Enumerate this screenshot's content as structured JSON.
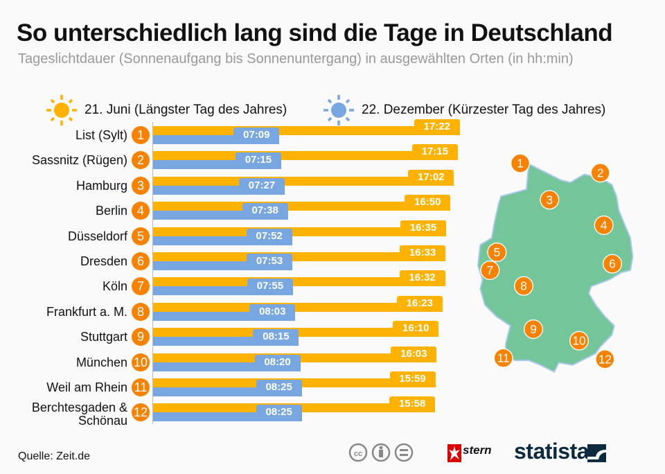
{
  "title": "So unterschiedlich lang sind die Tage in Deutschland",
  "subtitle": "Tageslichtdauer (Sonnenaufgang bis Sonnenuntergang) in ausgewählten Orten (in hh:min)",
  "source": "Quelle: Zeit.de",
  "logos": [
    "stern",
    "statista"
  ],
  "icons": [
    "sun-icon",
    "cc-icon",
    "by-icon",
    "nd-icon"
  ],
  "colors": {
    "june": "#ffb300",
    "december": "#77a6e0",
    "number": "#f68200",
    "map": "#74c69a"
  },
  "chart_data": {
    "type": "bar",
    "orientation": "horizontal",
    "unit": "hh:min",
    "series": [
      {
        "name": "21. Juni (Längster Tag des Jahres)",
        "values": [
          "17:22",
          "17:15",
          "17:02",
          "16:50",
          "16:35",
          "16:33",
          "16:32",
          "16:23",
          "16:10",
          "16:03",
          "15:59",
          "15:58"
        ]
      },
      {
        "name": "22. Dezember (Kürzester Tag des Jahres)",
        "values": [
          "07:09",
          "07:15",
          "07:27",
          "07:38",
          "07:52",
          "07:53",
          "07:55",
          "08:03",
          "08:15",
          "08:20",
          "08:25",
          "08:25"
        ]
      }
    ],
    "categories": [
      "List (Sylt)",
      "Sassnitz (Rügen)",
      "Hamburg",
      "Berlin",
      "Düsseldorf",
      "Dresden",
      "Köln",
      "Frankfurt a. M.",
      "Stuttgart",
      "München",
      "Weil am Rhein",
      "Berchtesgaden & Schönau"
    ],
    "numbers": [
      "1",
      "2",
      "3",
      "4",
      "5",
      "6",
      "7",
      "8",
      "9",
      "10",
      "11",
      "12"
    ]
  }
}
